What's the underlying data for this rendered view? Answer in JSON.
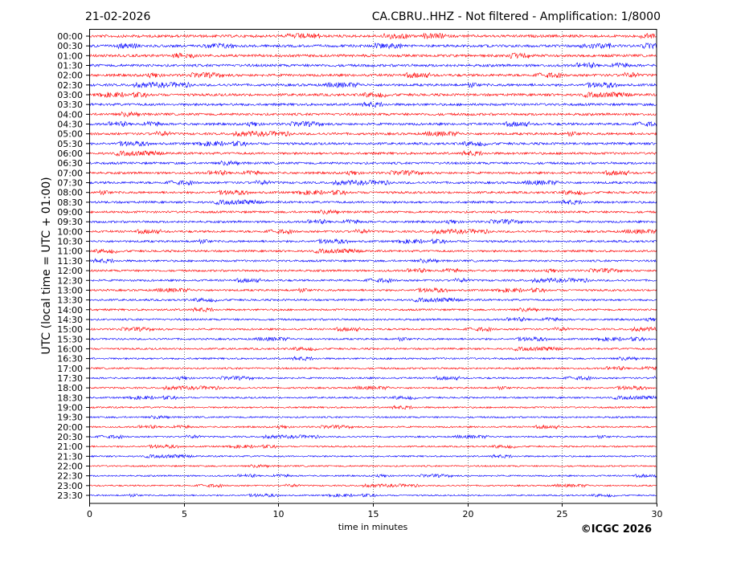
{
  "header": {
    "date": "21-02-2026",
    "title": "CA.CBRU..HHZ - Not filtered - Amplification: 1/8000"
  },
  "footer": {
    "copyright": "©ICGC 2026"
  },
  "chart_data": {
    "type": "line",
    "title": "CA.CBRU..HHZ - Not filtered - Amplification: 1/8000",
    "xlabel": "time in minutes",
    "ylabel": "UTC (local time = UTC + 01:00)",
    "xlim": [
      0,
      30
    ],
    "x_ticks": [
      "0",
      "5",
      "10",
      "15",
      "20",
      "25",
      "30"
    ],
    "grid": "vertical dotted at x ticks",
    "series_colors": [
      "#ff0000",
      "#0000ff"
    ],
    "rows": [
      "00:00",
      "00:30",
      "01:00",
      "01:30",
      "02:00",
      "02:30",
      "03:00",
      "03:30",
      "04:00",
      "04:30",
      "05:00",
      "05:30",
      "06:00",
      "06:30",
      "07:00",
      "07:30",
      "08:00",
      "08:30",
      "09:00",
      "09:30",
      "10:00",
      "10:30",
      "11:00",
      "11:30",
      "12:00",
      "12:30",
      "13:00",
      "13:30",
      "14:00",
      "14:30",
      "15:00",
      "15:30",
      "16:00",
      "16:30",
      "17:00",
      "17:30",
      "18:00",
      "18:30",
      "19:00",
      "19:30",
      "20:00",
      "20:30",
      "21:00",
      "21:30",
      "22:00",
      "22:30",
      "23:00",
      "23:30"
    ]
  }
}
